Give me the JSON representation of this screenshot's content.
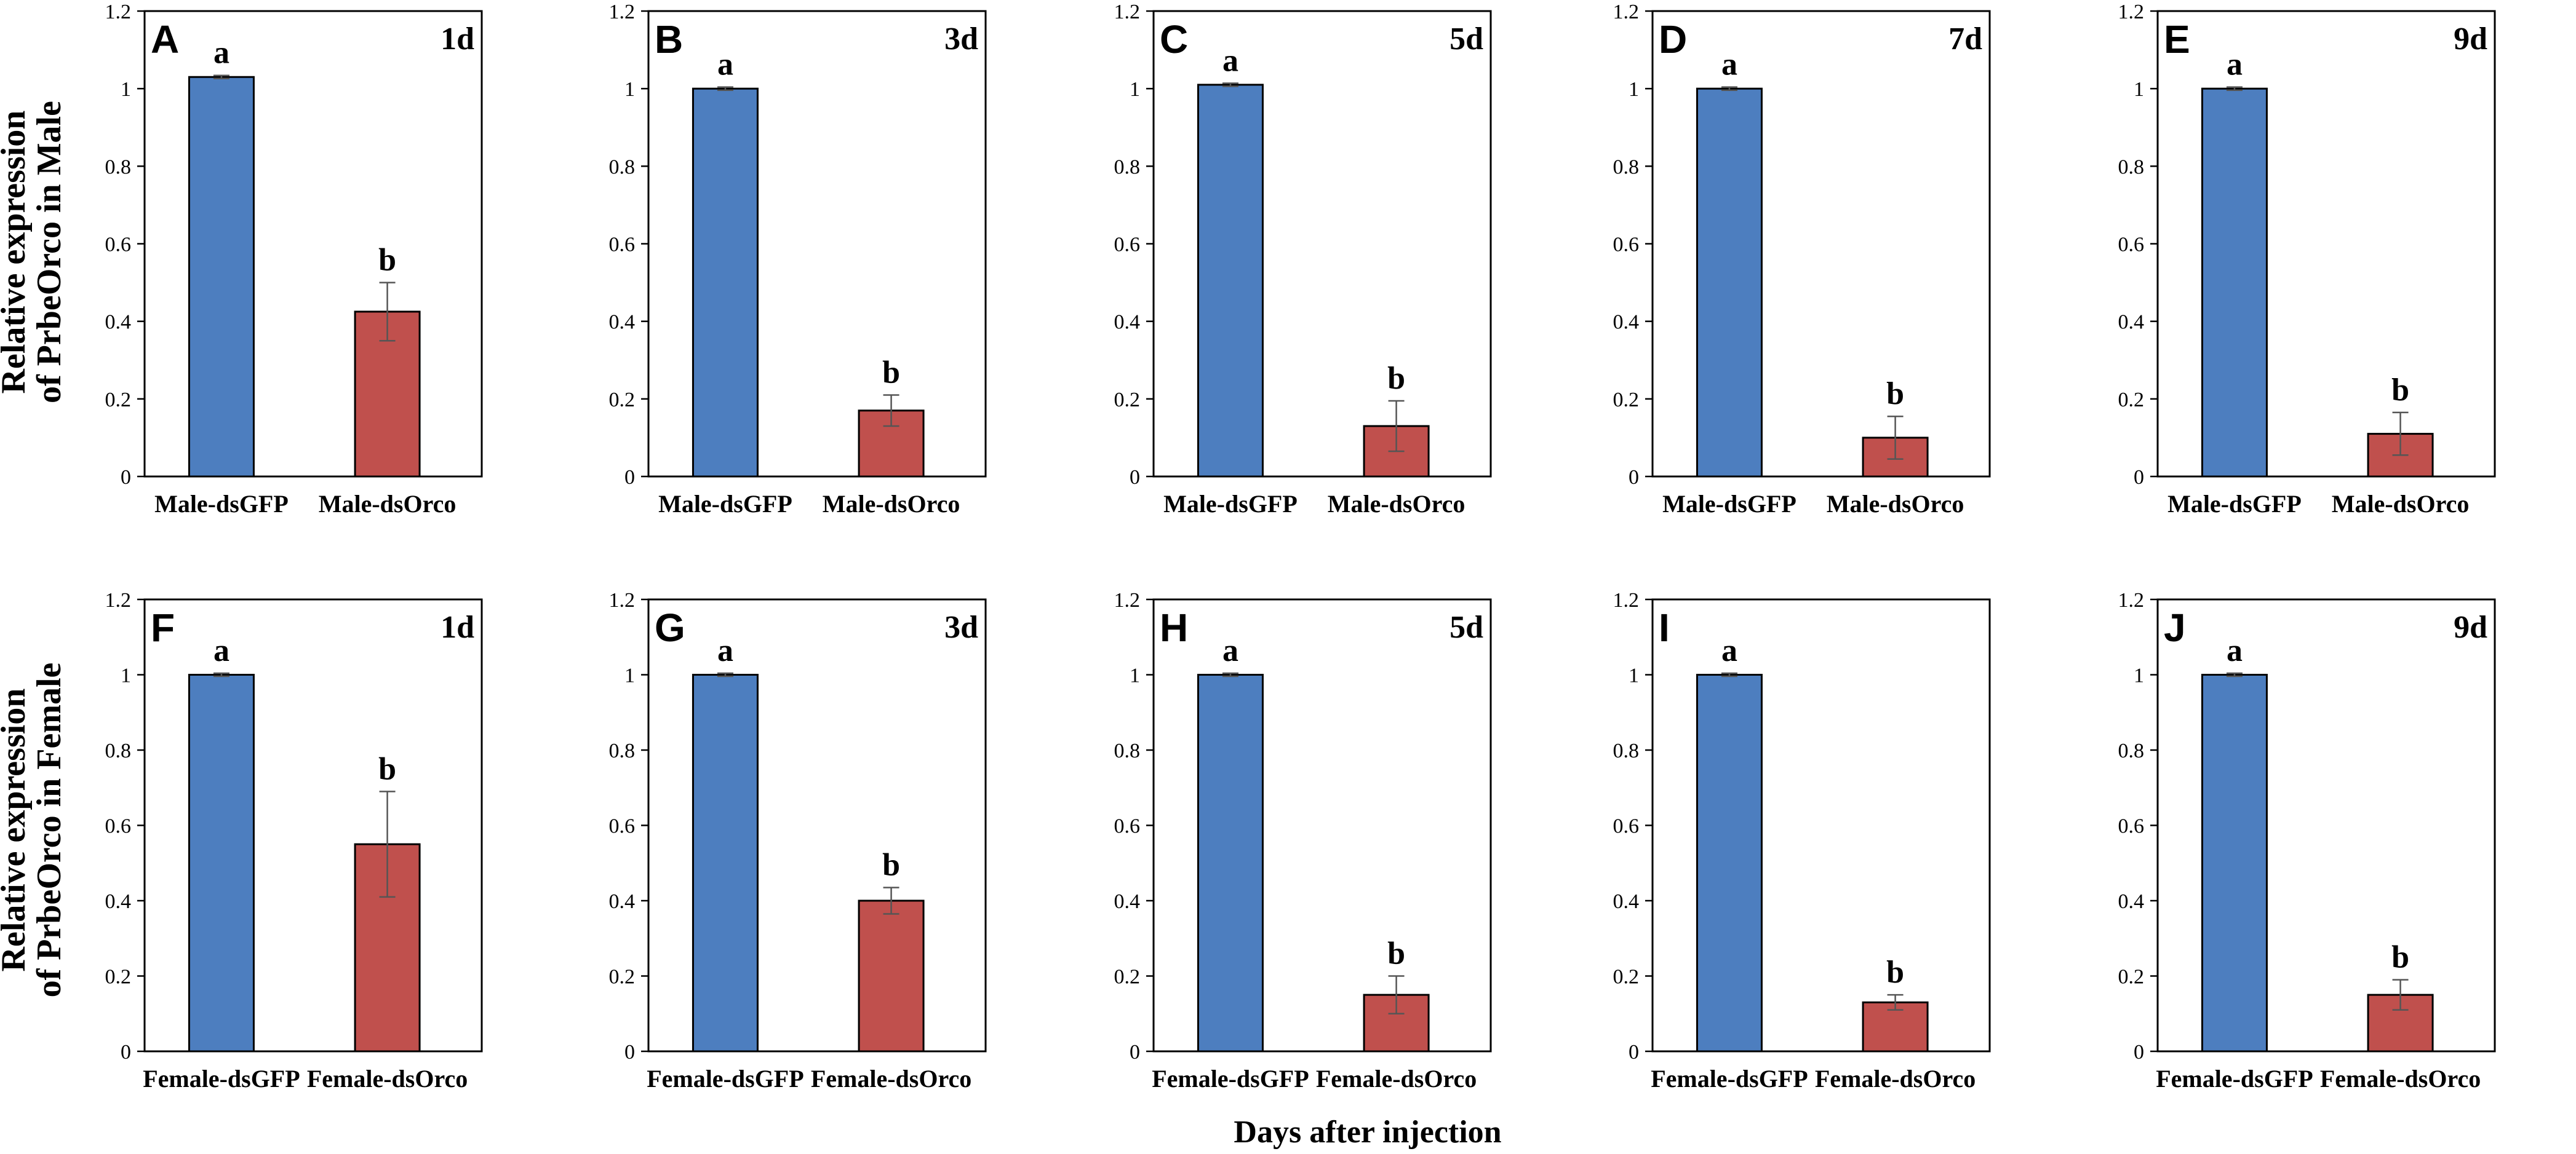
{
  "chart_data": [
    {
      "type": "bar",
      "panel": "A",
      "day": "1d",
      "categories": [
        "Male-dsGFP",
        "Male-dsOrco"
      ],
      "values": [
        1.03,
        0.425
      ],
      "errors": [
        0.004,
        0.075
      ],
      "significance": [
        "a",
        "b"
      ],
      "ylim": [
        0,
        1.2
      ],
      "yticks": [
        "0",
        "0.2",
        "0.4",
        "0.6",
        "0.8",
        "1",
        "1.2"
      ],
      "colors": [
        "#4d7ebf",
        "#c0504d"
      ]
    },
    {
      "type": "bar",
      "panel": "B",
      "day": "3d",
      "categories": [
        "Male-dsGFP",
        "Male-dsOrco"
      ],
      "values": [
        1.0,
        0.17
      ],
      "errors": [
        0.004,
        0.04
      ],
      "significance": [
        "a",
        "b"
      ],
      "ylim": [
        0,
        1.2
      ],
      "yticks": [
        "0",
        "0.2",
        "0.4",
        "0.6",
        "0.8",
        "1",
        "1.2"
      ],
      "colors": [
        "#4d7ebf",
        "#c0504d"
      ]
    },
    {
      "type": "bar",
      "panel": "C",
      "day": "5d",
      "categories": [
        "Male-dsGFP",
        "Male-dsOrco"
      ],
      "values": [
        1.01,
        0.13
      ],
      "errors": [
        0.004,
        0.065
      ],
      "significance": [
        "a",
        "b"
      ],
      "ylim": [
        0,
        1.2
      ],
      "yticks": [
        "0",
        "0.2",
        "0.4",
        "0.6",
        "0.8",
        "1",
        "1.2"
      ],
      "colors": [
        "#4d7ebf",
        "#c0504d"
      ]
    },
    {
      "type": "bar",
      "panel": "D",
      "day": "7d",
      "categories": [
        "Male-dsGFP",
        "Male-dsOrco"
      ],
      "values": [
        1.0,
        0.1
      ],
      "errors": [
        0.004,
        0.055
      ],
      "significance": [
        "a",
        "b"
      ],
      "ylim": [
        0,
        1.2
      ],
      "yticks": [
        "0",
        "0.2",
        "0.4",
        "0.6",
        "0.8",
        "1",
        "1.2"
      ],
      "colors": [
        "#4d7ebf",
        "#c0504d"
      ]
    },
    {
      "type": "bar",
      "panel": "E",
      "day": "9d",
      "categories": [
        "Male-dsGFP",
        "Male-dsOrco"
      ],
      "values": [
        1.0,
        0.11
      ],
      "errors": [
        0.004,
        0.055
      ],
      "significance": [
        "a",
        "b"
      ],
      "ylim": [
        0,
        1.2
      ],
      "yticks": [
        "0",
        "0.2",
        "0.4",
        "0.6",
        "0.8",
        "1",
        "1.2"
      ],
      "colors": [
        "#4d7ebf",
        "#c0504d"
      ]
    },
    {
      "type": "bar",
      "panel": "F",
      "day": "1d",
      "categories": [
        "Female-dsGFP",
        "Female-dsOrco"
      ],
      "values": [
        1.0,
        0.55
      ],
      "errors": [
        0.004,
        0.14
      ],
      "significance": [
        "a",
        "b"
      ],
      "ylim": [
        0,
        1.2
      ],
      "yticks": [
        "0",
        "0.2",
        "0.4",
        "0.6",
        "0.8",
        "1",
        "1.2"
      ],
      "colors": [
        "#4d7ebf",
        "#c0504d"
      ]
    },
    {
      "type": "bar",
      "panel": "G",
      "day": "3d",
      "categories": [
        "Female-dsGFP",
        "Female-dsOrco"
      ],
      "values": [
        1.0,
        0.4
      ],
      "errors": [
        0.004,
        0.035
      ],
      "significance": [
        "a",
        "b"
      ],
      "ylim": [
        0,
        1.2
      ],
      "yticks": [
        "0",
        "0.2",
        "0.4",
        "0.6",
        "0.8",
        "1",
        "1.2"
      ],
      "colors": [
        "#4d7ebf",
        "#c0504d"
      ]
    },
    {
      "type": "bar",
      "panel": "H",
      "day": "5d",
      "categories": [
        "Female-dsGFP",
        "Female-dsOrco"
      ],
      "values": [
        1.0,
        0.15
      ],
      "errors": [
        0.004,
        0.05
      ],
      "significance": [
        "a",
        "b"
      ],
      "ylim": [
        0,
        1.2
      ],
      "yticks": [
        "0",
        "0.2",
        "0.4",
        "0.6",
        "0.8",
        "1",
        "1.2"
      ],
      "colors": [
        "#4d7ebf",
        "#c0504d"
      ]
    },
    {
      "type": "bar",
      "panel": "I",
      "day": "",
      "categories": [
        "Female-dsGFP",
        "Female-dsOrco"
      ],
      "values": [
        1.0,
        0.13
      ],
      "errors": [
        0.004,
        0.02
      ],
      "significance": [
        "a",
        "b"
      ],
      "ylim": [
        0,
        1.2
      ],
      "yticks": [
        "0",
        "0.2",
        "0.4",
        "0.6",
        "0.8",
        "1",
        "1.2"
      ],
      "colors": [
        "#4d7ebf",
        "#c0504d"
      ]
    },
    {
      "type": "bar",
      "panel": "J",
      "day": "9d",
      "categories": [
        "Female-dsGFP",
        "Female-dsOrco"
      ],
      "values": [
        1.0,
        0.15
      ],
      "errors": [
        0.004,
        0.04
      ],
      "significance": [
        "a",
        "b"
      ],
      "ylim": [
        0,
        1.2
      ],
      "yticks": [
        "0",
        "0.2",
        "0.4",
        "0.6",
        "0.8",
        "1",
        "1.2"
      ],
      "colors": [
        "#4d7ebf",
        "#c0504d"
      ]
    }
  ],
  "labels": {
    "ylabel_male_line1": "Relative expression",
    "ylabel_male_line2": "of PrbeOrco in Male",
    "ylabel_female_line1": "Relative expression",
    "ylabel_female_line2": "of PrbeOrco in Female",
    "xlabel": "Days after injection"
  }
}
